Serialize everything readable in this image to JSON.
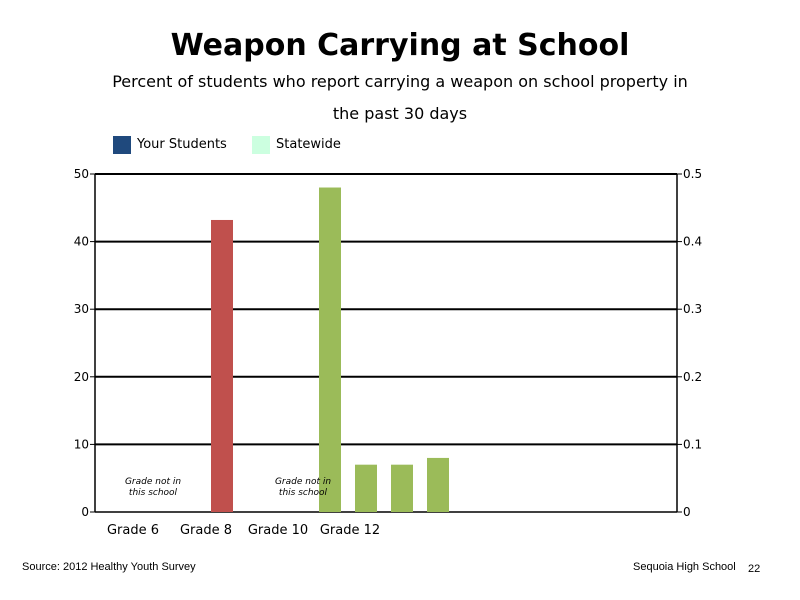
{
  "title": "Weapon Carrying at School",
  "subtitle": "Percent of students who report carrying a weapon on school property in the past 30 days",
  "legend": [
    {
      "label": "Your Students",
      "color": "#1F497D"
    },
    {
      "label": "Statewide",
      "color": "#CCFFE0"
    }
  ],
  "footer": {
    "source": "Source: 2012 Healthy Youth Survey",
    "school": "Sequoia High School",
    "page": "22"
  },
  "chart_data": {
    "type": "bar",
    "categories": [
      "Grade 6",
      "Grade 8",
      "Grade 10",
      "Grade 12"
    ],
    "left_axis": {
      "ylim": [
        0,
        50
      ],
      "ticks": [
        "0",
        "10",
        "20",
        "30",
        "40",
        "50"
      ]
    },
    "right_axis": {
      "ylim": [
        0,
        0.5
      ],
      "ticks": [
        "0",
        "0.1",
        "0.2",
        "0.3",
        "0.4",
        "0.5"
      ]
    },
    "grid": true,
    "bars": [
      {
        "slot": 3,
        "value": 43.2,
        "axis": "left",
        "color": "#C0504D"
      },
      {
        "slot": 6,
        "value": 0.48,
        "axis": "right",
        "color": "#9BBB59"
      },
      {
        "slot": 7,
        "value": 0.07,
        "axis": "right",
        "color": "#9BBB59"
      },
      {
        "slot": 8,
        "value": 0.07,
        "axis": "right",
        "color": "#9BBB59"
      },
      {
        "slot": 9,
        "value": 0.08,
        "axis": "right",
        "color": "#9BBB59"
      }
    ],
    "annotations": [
      {
        "category": "Grade 6",
        "lines": [
          "Grade not in",
          "this school"
        ]
      },
      {
        "category": "Grade 10",
        "lines": [
          "Grade not in",
          "this school"
        ]
      }
    ]
  }
}
